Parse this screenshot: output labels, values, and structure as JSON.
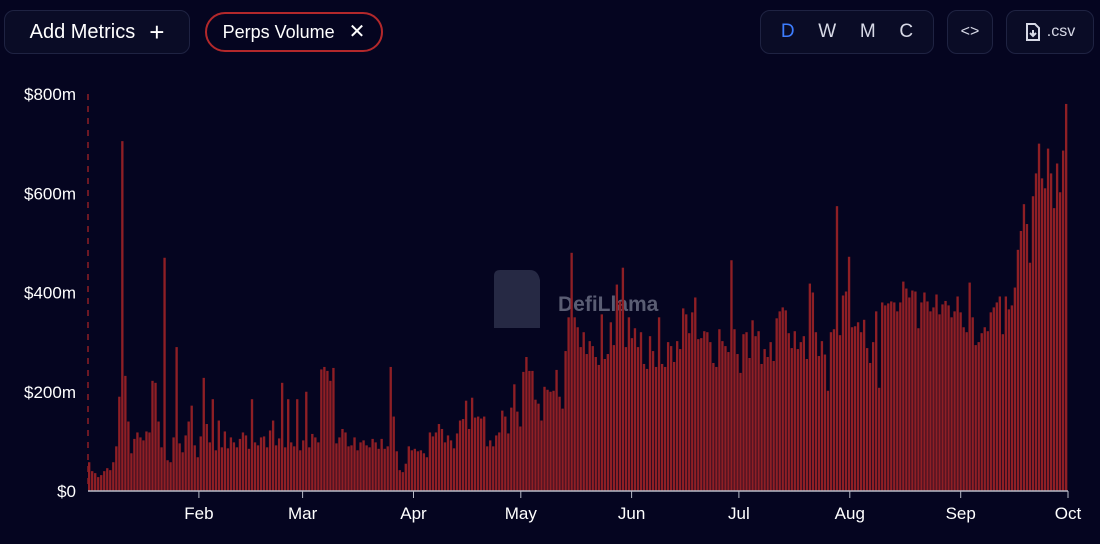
{
  "toolbar": {
    "add_metrics_label": "Add Metrics",
    "plus_glyph": "+",
    "metric_chip_label": "Perps Volume",
    "close_glyph": "✕",
    "periods": [
      "D",
      "W",
      "M",
      "C"
    ],
    "active_period": "D",
    "embed_glyph": "<>",
    "csv_label": ".csv"
  },
  "watermark": "DefiLlama",
  "chart_data": {
    "type": "bar",
    "series_color": "#8f1f25",
    "ylim": [
      0,
      800000000
    ],
    "ytick_values": [
      0,
      200000000,
      400000000,
      600000000,
      800000000
    ],
    "ytick_labels": [
      "$0",
      "$200m",
      "$400m",
      "$600m",
      "$800m"
    ],
    "xtick_labels": [
      "Feb",
      "Mar",
      "Apr",
      "May",
      "Jun",
      "Jul",
      "Aug",
      "Sep",
      "Oct"
    ],
    "xtick_dates": [
      "2024-02-01",
      "2024-03-01",
      "2024-04-01",
      "2024-05-01",
      "2024-06-01",
      "2024-07-01",
      "2024-08-01",
      "2024-09-01",
      "2024-10-01"
    ],
    "x_start": "2024-01-01",
    "x_end": "2024-10-01",
    "unit": "millions USD",
    "values_millions": [
      58,
      40,
      36,
      28,
      32,
      40,
      46,
      42,
      58,
      90,
      190,
      705,
      232,
      140,
      76,
      105,
      118,
      108,
      102,
      120,
      118,
      222,
      218,
      140,
      88,
      470,
      62,
      58,
      108,
      290,
      96,
      78,
      112,
      140,
      172,
      92,
      68,
      110,
      228,
      135,
      98,
      185,
      82,
      142,
      88,
      120,
      86,
      108,
      98,
      88,
      105,
      118,
      112,
      85,
      185,
      98,
      92,
      108,
      110,
      88,
      122,
      142,
      92,
      106,
      218,
      88,
      185,
      98,
      90,
      185,
      82,
      102,
      200,
      88,
      115,
      108,
      98,
      245,
      250,
      242,
      222,
      248,
      96,
      108,
      125,
      118,
      90,
      92,
      108,
      82,
      98,
      102,
      92,
      88,
      105,
      98,
      85,
      105,
      85,
      90,
      250,
      150,
      80,
      42,
      38,
      55,
      90,
      82,
      85,
      80,
      82,
      76,
      68,
      118,
      110,
      118,
      135,
      125,
      98,
      112,
      102,
      86,
      116,
      142,
      145,
      182,
      125,
      188,
      148,
      150,
      146,
      150,
      90,
      102,
      90,
      112,
      118,
      162,
      150,
      116,
      168,
      215,
      160,
      130,
      240,
      270,
      242,
      242,
      184,
      176,
      142,
      210,
      204,
      200,
      202,
      244,
      190,
      166,
      282,
      350,
      480,
      350,
      330,
      290,
      320,
      276,
      302,
      292,
      270,
      254,
      356,
      266,
      276,
      340,
      294,
      416,
      382,
      450,
      290,
      350,
      308,
      328,
      290,
      320,
      256,
      246,
      312,
      282,
      250,
      350,
      256,
      250,
      300,
      292,
      260,
      302,
      286,
      368,
      356,
      318,
      360,
      390,
      306,
      308,
      322,
      320,
      300,
      258,
      250,
      326,
      302,
      292,
      280,
      465,
      326,
      276,
      238,
      316,
      320,
      268,
      344,
      312,
      322,
      256,
      286,
      270,
      300,
      262,
      348,
      362,
      370,
      364,
      318,
      288,
      322,
      286,
      300,
      312,
      266,
      418,
      400,
      320,
      272,
      302,
      275,
      202,
      320,
      326,
      574,
      314,
      394,
      402,
      472,
      330,
      332,
      340,
      320,
      345,
      288,
      258,
      300,
      362,
      208,
      380,
      374,
      378,
      382,
      380,
      362,
      380,
      422,
      408,
      390,
      404,
      402,
      328,
      380,
      400,
      382,
      362,
      370,
      396,
      356,
      376,
      383,
      374,
      350,
      362,
      392,
      360,
      330,
      320,
      420,
      350,
      294,
      300,
      318,
      330,
      322,
      360,
      370,
      380,
      392,
      316,
      392,
      366,
      374,
      410,
      486,
      524,
      578,
      538,
      460,
      594,
      640,
      700,
      630,
      610,
      690,
      640,
      570,
      660,
      602,
      686,
      780
    ]
  }
}
